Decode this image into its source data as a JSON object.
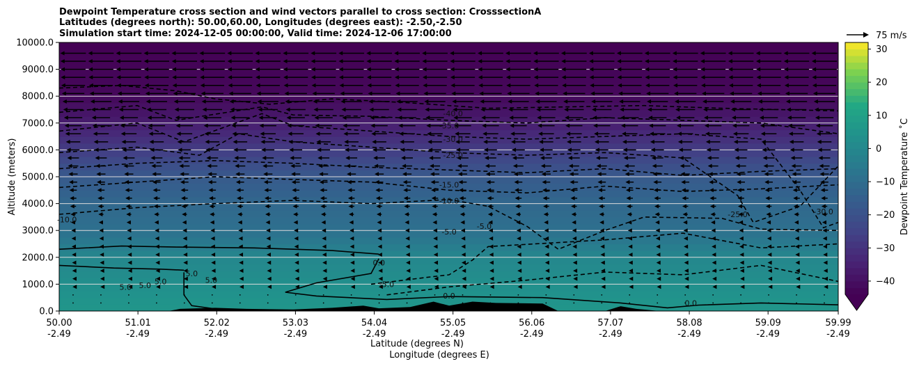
{
  "chart_data": {
    "type": "heatmap",
    "title_lines": [
      "Dewpoint Temperature cross section and wind vectors parallel to cross section: CrosssectionA",
      "Latitudes (degrees north): 50.00,60.00, Longitudes (degrees east): -2.50,-2.50",
      "Simulation start time: 2024-12-05 00:00:00, Valid time: 2024-12-06 17:00:00"
    ],
    "ylabel": "Altitude (meters)",
    "xlabel_lat": "Latitude (degrees N)",
    "xlabel_lon": "Longitude (degrees E)",
    "xlim": [
      50.0,
      59.99
    ],
    "ylim": [
      0,
      10000
    ],
    "x_ticks": [
      {
        "lat": "50.00",
        "lon": "-2.49",
        "value": 50.0
      },
      {
        "lat": "51.01",
        "lon": "-2.49",
        "value": 51.01
      },
      {
        "lat": "52.02",
        "lon": "-2.49",
        "value": 52.02
      },
      {
        "lat": "53.03",
        "lon": "-2.49",
        "value": 53.03
      },
      {
        "lat": "54.04",
        "lon": "-2.49",
        "value": 54.04
      },
      {
        "lat": "55.05",
        "lon": "-2.49",
        "value": 55.05
      },
      {
        "lat": "56.06",
        "lon": "-2.49",
        "value": 56.06
      },
      {
        "lat": "57.07",
        "lon": "-2.49",
        "value": 57.07
      },
      {
        "lat": "58.08",
        "lon": "-2.49",
        "value": 58.08
      },
      {
        "lat": "59.09",
        "lon": "-2.49",
        "value": 59.09
      },
      {
        "lat": "59.99",
        "lon": "-2.49",
        "value": 59.99
      }
    ],
    "y_ticks": [
      {
        "label": "0.0",
        "value": 0
      },
      {
        "label": "1000.0",
        "value": 1000
      },
      {
        "label": "2000.0",
        "value": 2000
      },
      {
        "label": "3000.0",
        "value": 3000
      },
      {
        "label": "4000.0",
        "value": 4000
      },
      {
        "label": "5000.0",
        "value": 5000
      },
      {
        "label": "6000.0",
        "value": 6000
      },
      {
        "label": "7000.0",
        "value": 7000
      },
      {
        "label": "8000.0",
        "value": 8000
      },
      {
        "label": "9000.0",
        "value": 9000
      },
      {
        "label": "10000.0",
        "value": 10000
      }
    ],
    "gridlines_y": [
      1000,
      2000,
      3000,
      4000,
      5000,
      6000,
      7000,
      8000,
      9000
    ],
    "colorbar": {
      "label": "Dewpoint Temperature $^\\circ$C",
      "label_display": "Dewpoint Temperature ˚C",
      "range": [
        -44,
        32
      ],
      "extend": "min",
      "ticks": [
        {
          "label": "−40",
          "value": -40
        },
        {
          "label": "−30",
          "value": -30
        },
        {
          "label": "−20",
          "value": -20
        },
        {
          "label": "−10",
          "value": -10
        },
        {
          "label": "0",
          "value": 0
        },
        {
          "label": "10",
          "value": 10
        },
        {
          "label": "20",
          "value": 20
        },
        {
          "label": "30",
          "value": 30
        }
      ]
    },
    "quiver_key": {
      "label": "75 m/s",
      "value": 75
    },
    "colors": {
      "gridline": "#dcdcdc",
      "contour": "#000000",
      "terrain": "#000000"
    },
    "dewpoint_profile": [
      {
        "z": 0,
        "t": 6
      },
      {
        "z": 1000,
        "t": 3
      },
      {
        "z": 2000,
        "t": 0
      },
      {
        "z": 2500,
        "t": -5
      },
      {
        "z": 3000,
        "t": -9
      },
      {
        "z": 4000,
        "t": -12
      },
      {
        "z": 5000,
        "t": -17
      },
      {
        "z": 6000,
        "t": -27
      },
      {
        "z": 7000,
        "t": -36
      },
      {
        "z": 8000,
        "t": -42
      },
      {
        "z": 10000,
        "t": -44
      }
    ],
    "contours": [
      {
        "level": 5.0,
        "style": "solid",
        "points": [
          [
            50.0,
            2300
          ],
          [
            50.8,
            2420
          ],
          [
            51.5,
            2380
          ],
          [
            52.5,
            2350
          ],
          [
            53.5,
            2250
          ],
          [
            54.1,
            2120
          ]
        ]
      },
      {
        "level": 5.0,
        "style": "solid",
        "points": [
          [
            50.0,
            1700
          ],
          [
            50.7,
            1600
          ],
          [
            51.3,
            1560
          ],
          [
            51.6,
            1520
          ]
        ]
      },
      {
        "level": 5.0,
        "style": "solid",
        "points": [
          [
            51.6,
            1440
          ],
          [
            51.6,
            600
          ],
          [
            51.7,
            200
          ],
          [
            52.0,
            80
          ]
        ]
      },
      {
        "level": 0.0,
        "style": "solid",
        "points": [
          [
            54.1,
            1950
          ],
          [
            54.0,
            1400
          ],
          [
            53.3,
            1050
          ],
          [
            52.9,
            700
          ],
          [
            53.3,
            560
          ],
          [
            54.2,
            430
          ],
          [
            55.0,
            540
          ],
          [
            56.2,
            500
          ],
          [
            57.2,
            300
          ],
          [
            57.8,
            120
          ],
          [
            58.2,
            220
          ],
          [
            59.0,
            300
          ],
          [
            59.99,
            230
          ]
        ]
      },
      {
        "level": -5.0,
        "style": "dashed",
        "points": [
          [
            54.0,
            1000
          ],
          [
            54.7,
            1250
          ],
          [
            55.0,
            1350
          ],
          [
            55.3,
            1900
          ],
          [
            55.5,
            2400
          ],
          [
            56.1,
            2500
          ],
          [
            57.0,
            2650
          ],
          [
            58.0,
            2900
          ],
          [
            59.0,
            2350
          ],
          [
            59.99,
            2500
          ]
        ]
      },
      {
        "level": -5.0,
        "style": "dashed",
        "points": [
          [
            54.2,
            600
          ],
          [
            55.0,
            900
          ],
          [
            56.0,
            1150
          ],
          [
            57.0,
            1450
          ],
          [
            58.0,
            1350
          ],
          [
            59.0,
            1700
          ],
          [
            59.99,
            1100
          ]
        ]
      },
      {
        "level": -10.0,
        "style": "dashed",
        "points": [
          [
            50.0,
            3600
          ],
          [
            51.0,
            3850
          ],
          [
            52.0,
            4000
          ],
          [
            53.0,
            4120
          ],
          [
            54.0,
            4000
          ],
          [
            55.0,
            4150
          ],
          [
            55.5,
            3900
          ],
          [
            56.0,
            3150
          ],
          [
            56.4,
            2300
          ],
          [
            57.0,
            3000
          ],
          [
            57.5,
            3500
          ],
          [
            58.5,
            3450
          ],
          [
            59.0,
            3050
          ],
          [
            59.99,
            3000
          ]
        ]
      },
      {
        "level": -15.0,
        "style": "dashed",
        "points": [
          [
            50.0,
            4600
          ],
          [
            51.0,
            4800
          ],
          [
            52.0,
            5000
          ],
          [
            53.0,
            4900
          ],
          [
            54.0,
            4800
          ],
          [
            55.0,
            4500
          ],
          [
            56.0,
            4400
          ],
          [
            57.0,
            4650
          ],
          [
            58.0,
            4450
          ],
          [
            59.0,
            4550
          ],
          [
            59.99,
            4700
          ]
        ]
      },
      {
        "level": -20.0,
        "style": "dashed",
        "points": [
          [
            50.0,
            5300
          ],
          [
            51.0,
            5500
          ],
          [
            52.0,
            5600
          ],
          [
            53.0,
            5500
          ],
          [
            54.0,
            5350
          ],
          [
            55.0,
            5250
          ],
          [
            56.0,
            5150
          ],
          [
            57.0,
            5300
          ],
          [
            58.0,
            5050
          ],
          [
            59.0,
            5200
          ],
          [
            59.99,
            5300
          ]
        ]
      },
      {
        "level": -25.0,
        "style": "dashed",
        "points": [
          [
            50.0,
            5900
          ],
          [
            51.0,
            6100
          ],
          [
            51.8,
            5800
          ],
          [
            52.3,
            6600
          ],
          [
            53.0,
            6300
          ],
          [
            54.0,
            6100
          ],
          [
            55.0,
            5900
          ],
          [
            56.0,
            5800
          ],
          [
            57.0,
            5900
          ],
          [
            58.0,
            5700
          ],
          [
            58.7,
            4300
          ],
          [
            58.9,
            3300
          ],
          [
            59.5,
            3900
          ],
          [
            59.99,
            5400
          ]
        ]
      },
      {
        "level": -30.0,
        "style": "dashed",
        "points": [
          [
            50.0,
            6700
          ],
          [
            51.0,
            7000
          ],
          [
            51.6,
            6300
          ],
          [
            52.6,
            7350
          ],
          [
            53.0,
            6900
          ],
          [
            54.0,
            6700
          ],
          [
            55.0,
            6500
          ],
          [
            56.0,
            6400
          ],
          [
            57.0,
            6500
          ],
          [
            58.0,
            6600
          ],
          [
            59.0,
            6400
          ],
          [
            59.5,
            4500
          ],
          [
            59.8,
            3100
          ],
          [
            59.99,
            3300
          ]
        ]
      },
      {
        "level": -35.0,
        "style": "dashed",
        "points": [
          [
            50.0,
            7400
          ],
          [
            51.0,
            7650
          ],
          [
            51.5,
            7100
          ],
          [
            52.6,
            7600
          ],
          [
            53.0,
            7300
          ],
          [
            54.0,
            7250
          ],
          [
            55.0,
            7100
          ],
          [
            56.0,
            7000
          ],
          [
            57.0,
            7200
          ],
          [
            58.0,
            7100
          ],
          [
            59.0,
            7000
          ],
          [
            59.99,
            6600
          ]
        ]
      },
      {
        "level": -40.0,
        "style": "dashed",
        "points": [
          [
            50.0,
            8300
          ],
          [
            50.8,
            8400
          ],
          [
            51.5,
            8200
          ],
          [
            52.0,
            7900
          ],
          [
            52.7,
            7700
          ],
          [
            53.5,
            7900
          ],
          [
            54.5,
            7750
          ],
          [
            55.5,
            7550
          ],
          [
            56.5,
            7600
          ],
          [
            57.5,
            7650
          ],
          [
            58.5,
            7550
          ],
          [
            59.99,
            7450
          ]
        ]
      }
    ],
    "contour_labels": [
      {
        "text": "-40.0",
        "x": 55.05,
        "y": 7250
      },
      {
        "text": "-35.0",
        "x": 55.0,
        "y": 6800
      },
      {
        "text": "-30.0",
        "x": 55.05,
        "y": 6300
      },
      {
        "text": "-25.0",
        "x": 55.05,
        "y": 5700
      },
      {
        "text": "-15.0",
        "x": 55.0,
        "y": 4600
      },
      {
        "text": "-10.0",
        "x": 55.0,
        "y": 4000
      },
      {
        "text": "-5.0",
        "x": 55.45,
        "y": 3060
      },
      {
        "text": "-5.0",
        "x": 55.0,
        "y": 2850
      },
      {
        "text": "0.0",
        "x": 54.1,
        "y": 1700
      },
      {
        "text": "-5.0",
        "x": 54.2,
        "y": 900
      },
      {
        "text": "0.0",
        "x": 55.0,
        "y": 460
      },
      {
        "text": "0.0",
        "x": 58.1,
        "y": 200
      },
      {
        "text": "5.0",
        "x": 50.85,
        "y": 790
      },
      {
        "text": "5.0",
        "x": 51.1,
        "y": 850
      },
      {
        "text": "5.0",
        "x": 51.3,
        "y": 1000
      },
      {
        "text": "5.0",
        "x": 51.7,
        "y": 1300
      },
      {
        "text": "5.0",
        "x": 51.95,
        "y": 1050
      },
      {
        "text": "-10.0",
        "x": 50.1,
        "y": 3300
      },
      {
        "text": "-25.0",
        "x": 58.7,
        "y": 3500
      },
      {
        "text": "-30.0",
        "x": 59.8,
        "y": 3600
      }
    ],
    "terrain": [
      [
        50.0,
        0
      ],
      [
        51.4,
        0
      ],
      [
        51.55,
        80
      ],
      [
        52.0,
        120
      ],
      [
        52.4,
        80
      ],
      [
        53.0,
        60
      ],
      [
        53.5,
        120
      ],
      [
        53.9,
        200
      ],
      [
        54.1,
        100
      ],
      [
        54.5,
        150
      ],
      [
        54.8,
        350
      ],
      [
        55.0,
        200
      ],
      [
        55.3,
        350
      ],
      [
        55.6,
        300
      ],
      [
        56.2,
        280
      ],
      [
        56.4,
        0
      ],
      [
        57.0,
        0
      ],
      [
        57.2,
        180
      ],
      [
        57.4,
        80
      ],
      [
        57.7,
        0
      ],
      [
        59.99,
        0
      ]
    ],
    "wind": {
      "levels_m": [
        300,
        600,
        900,
        1200,
        1500,
        1800,
        2100,
        2400,
        2700,
        3000,
        3300,
        3600,
        3900,
        4200,
        4500,
        4800,
        5100,
        5400,
        5700,
        6000,
        6300,
        6600,
        6900,
        7200,
        7500,
        7800,
        8100,
        8400,
        8700,
        9000,
        9300,
        9600
      ],
      "columns": 28,
      "u_profile": [
        {
          "z": 0,
          "u": 0
        },
        {
          "z": 1500,
          "u": -2
        },
        {
          "z": 3000,
          "u": -4
        },
        {
          "z": 5000,
          "u": -10
        },
        {
          "z": 7000,
          "u": -20
        },
        {
          "z": 8500,
          "u": -28
        },
        {
          "z": 10000,
          "u": -30
        }
      ]
    }
  }
}
